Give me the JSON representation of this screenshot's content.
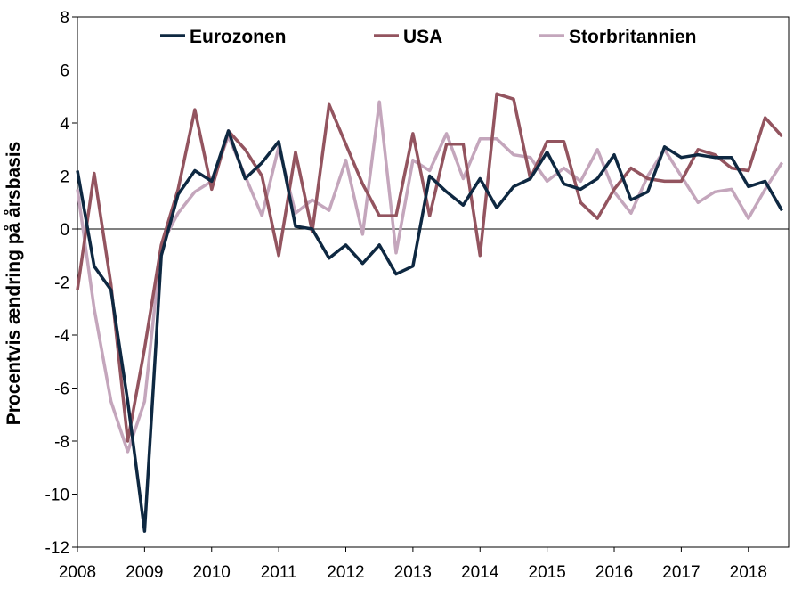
{
  "chart_data": {
    "type": "line",
    "title": "",
    "xlabel": "",
    "ylabel": "Procentvis ændring på årsbasis",
    "ylim": [
      -12,
      8
    ],
    "yticks": [
      8,
      6,
      4,
      2,
      0,
      -2,
      -4,
      -6,
      -8,
      -10,
      -12
    ],
    "xlim": [
      2008,
      2018.6
    ],
    "xticks": [
      "2008",
      "2009",
      "2010",
      "2011",
      "2012",
      "2013",
      "2014",
      "2015",
      "2016",
      "2017",
      "2018"
    ],
    "grid": false,
    "legend_position": "top",
    "x": [
      2008.0,
      2008.25,
      2008.5,
      2008.75,
      2009.0,
      2009.25,
      2009.5,
      2009.75,
      2010.0,
      2010.25,
      2010.5,
      2010.75,
      2011.0,
      2011.25,
      2011.5,
      2011.75,
      2012.0,
      2012.25,
      2012.5,
      2012.75,
      2013.0,
      2013.25,
      2013.5,
      2013.75,
      2014.0,
      2014.25,
      2014.5,
      2014.75,
      2015.0,
      2015.25,
      2015.5,
      2015.75,
      2016.0,
      2016.25,
      2016.5,
      2016.75,
      2017.0,
      2017.25,
      2017.5,
      2017.75,
      2018.0,
      2018.25,
      2018.5
    ],
    "series": [
      {
        "name": "Eurozonen",
        "color": "#0e2841",
        "values": [
          2.2,
          -1.4,
          -2.3,
          -6.5,
          -11.4,
          -1.0,
          1.3,
          2.2,
          1.8,
          3.7,
          1.9,
          2.5,
          3.3,
          0.1,
          0.0,
          -1.1,
          -0.6,
          -1.3,
          -0.6,
          -1.7,
          -1.4,
          2.0,
          1.4,
          0.9,
          1.9,
          0.8,
          1.6,
          1.9,
          2.9,
          1.7,
          1.5,
          1.9,
          2.8,
          1.1,
          1.4,
          3.1,
          2.7,
          2.8,
          2.7,
          2.7,
          1.6,
          1.8,
          0.7
        ]
      },
      {
        "name": "USA",
        "color": "#93545f",
        "values": [
          -2.3,
          2.1,
          -2.1,
          -8.0,
          -4.5,
          -0.6,
          1.5,
          4.5,
          1.5,
          3.7,
          3.0,
          2.0,
          -1.0,
          2.9,
          -0.1,
          4.7,
          3.2,
          1.7,
          0.5,
          0.5,
          3.6,
          0.5,
          3.2,
          3.2,
          -1.0,
          5.1,
          4.9,
          1.9,
          3.3,
          3.3,
          1.0,
          0.4,
          1.5,
          2.3,
          1.9,
          1.8,
          1.8,
          3.0,
          2.8,
          2.3,
          2.2,
          4.2,
          3.5
        ]
      },
      {
        "name": "Storbritannien",
        "color": "#c4a6bc",
        "values": [
          1.5,
          -3.0,
          -6.5,
          -8.4,
          -6.5,
          -0.6,
          0.6,
          1.4,
          1.8,
          3.5,
          2.0,
          0.5,
          3.1,
          0.6,
          1.1,
          0.7,
          2.6,
          -0.2,
          4.8,
          -0.9,
          2.6,
          2.2,
          3.6,
          1.9,
          3.4,
          3.4,
          2.8,
          2.7,
          1.8,
          2.3,
          1.8,
          3.0,
          1.4,
          0.6,
          2.0,
          3.0,
          2.0,
          1.0,
          1.4,
          1.5,
          0.4,
          1.5,
          2.5
        ]
      }
    ]
  }
}
